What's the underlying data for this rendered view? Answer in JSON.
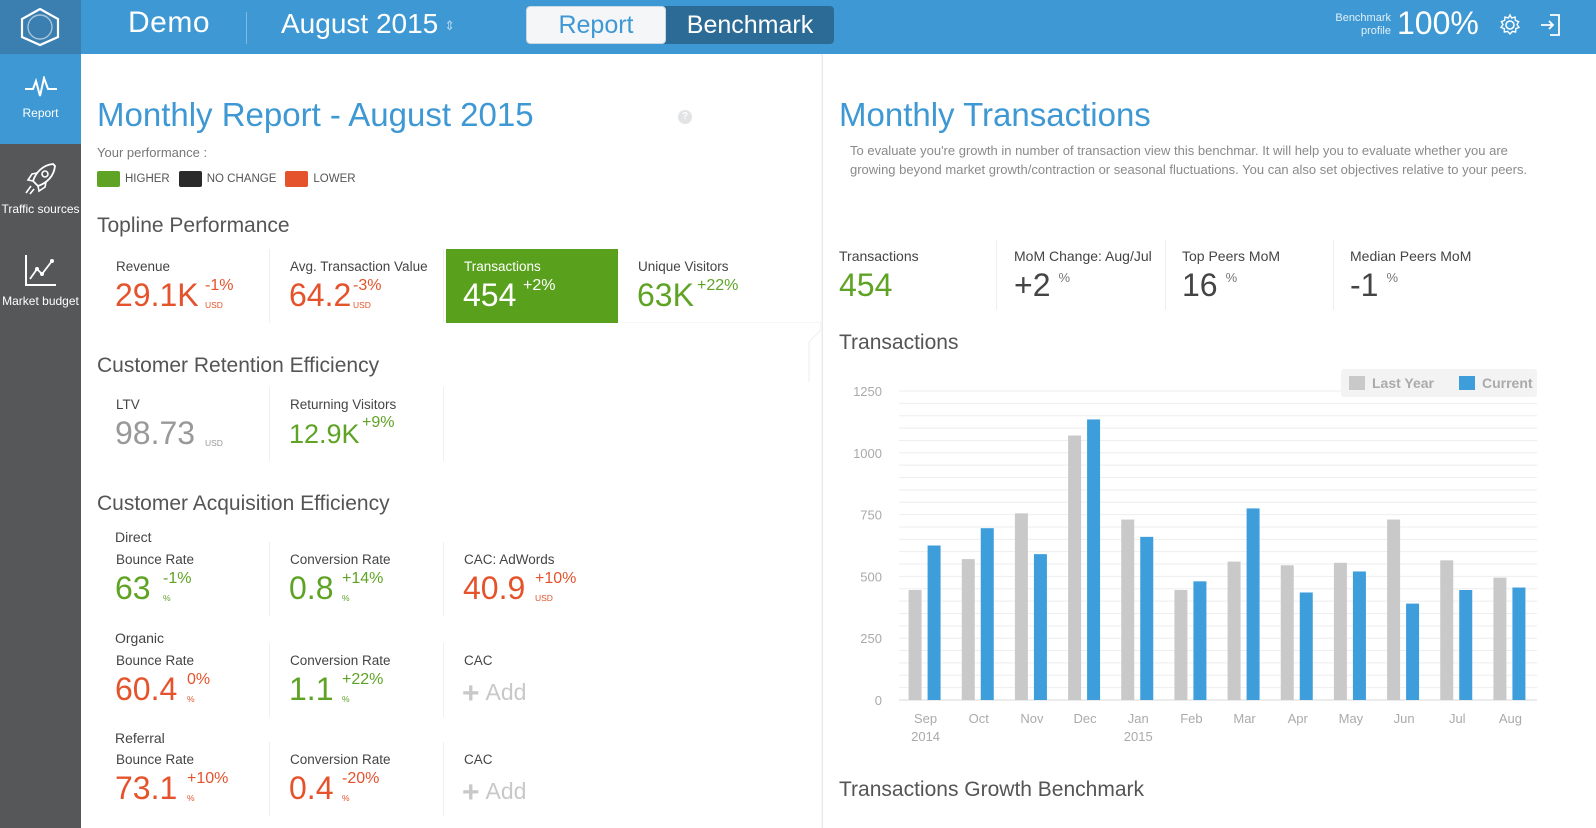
{
  "topbar": {
    "brand": "Demo",
    "period": "August 2015",
    "tabs": [
      "Report",
      "Benchmark"
    ],
    "benchmark_profile_label": "Benchmark profile",
    "benchmark_profile_value": "100%",
    "colors": {
      "accent": "#3d98d3",
      "dark": "#2b6b95"
    }
  },
  "sidebar": {
    "items": [
      {
        "label": "Report",
        "icon": "pulse-icon"
      },
      {
        "label": "Traffic sources",
        "icon": "rocket-icon"
      },
      {
        "label": "Market budget",
        "icon": "chart-icon"
      }
    ]
  },
  "report": {
    "title": "Monthly Report - August 2015",
    "help": "?",
    "performance_label": "Your performance :",
    "legend": [
      {
        "label": "HIGHER",
        "color": "#5fa325"
      },
      {
        "label": "NO CHANGE",
        "color": "#2a2a2a"
      },
      {
        "label": "LOWER",
        "color": "#e5532c"
      }
    ],
    "topline": {
      "title": "Topline Performance",
      "metrics": [
        {
          "label": "Revenue",
          "value": "29.1K",
          "delta": "-1%",
          "unit": "USD"
        },
        {
          "label": "Avg. Transaction Value",
          "value": "64.2",
          "delta": "-3%",
          "unit": "USD"
        },
        {
          "label": "Transactions",
          "value": "454",
          "delta": "+2%",
          "unit": ""
        },
        {
          "label": "Unique Visitors",
          "value": "63K",
          "delta": "+22%",
          "unit": ""
        }
      ]
    },
    "retention": {
      "title": "Customer Retention Efficiency",
      "metrics": [
        {
          "label": "LTV",
          "value": "98.73",
          "delta": "",
          "unit": "USD"
        },
        {
          "label": "Returning Visitors",
          "value": "12.9K",
          "delta": "+9%",
          "unit": ""
        }
      ]
    },
    "acquisition": {
      "title": "Customer Acquisition Efficiency",
      "groups": [
        {
          "name": "Direct",
          "metrics": [
            {
              "label": "Bounce Rate",
              "value": "63",
              "delta": "-1%",
              "unit": "%"
            },
            {
              "label": "Conversion Rate",
              "value": "0.8",
              "delta": "+14%",
              "unit": "%"
            },
            {
              "label": "CAC: AdWords",
              "value": "40.9",
              "delta": "+10%",
              "unit": "USD"
            }
          ]
        },
        {
          "name": "Organic",
          "metrics": [
            {
              "label": "Bounce Rate",
              "value": "60.4",
              "delta": "0%",
              "unit": "%"
            },
            {
              "label": "Conversion Rate",
              "value": "1.1",
              "delta": "+22%",
              "unit": "%"
            },
            {
              "label": "CAC",
              "add": "Add"
            }
          ]
        },
        {
          "name": "Referral",
          "metrics": [
            {
              "label": "Bounce Rate",
              "value": "73.1",
              "delta": "+10%",
              "unit": "%"
            },
            {
              "label": "Conversion Rate",
              "value": "0.4",
              "delta": "-20%",
              "unit": "%"
            },
            {
              "label": "CAC",
              "add": "Add"
            }
          ]
        }
      ]
    }
  },
  "benchmark": {
    "title": "Monthly Transactions",
    "description": "To evaluate you're growth in number of transaction view this benchmar. It will help you to evaluate whether you are growing beyond market growth/contraction or seasonal fluctuations. You can also set objectives relative to your peers.",
    "kpis": [
      {
        "label": "Transactions",
        "value": "454",
        "suffix": ""
      },
      {
        "label": "MoM Change: Aug/Jul",
        "value": "+2",
        "suffix": "%"
      },
      {
        "label": "Top Peers MoM",
        "value": "16",
        "suffix": "%"
      },
      {
        "label": "Median Peers MoM",
        "value": "-1",
        "suffix": "%"
      }
    ],
    "chart_title": "Transactions",
    "growth_title": "Transactions Growth Benchmark"
  },
  "chart_data": {
    "type": "bar",
    "title": "Transactions",
    "categories": [
      "Sep",
      "Oct",
      "Nov",
      "Dec",
      "Jan",
      "Feb",
      "Mar",
      "Apr",
      "May",
      "Jun",
      "Jul",
      "Aug"
    ],
    "category_years": [
      "2014",
      "",
      "",
      "",
      "2015",
      "",
      "",
      "",
      "",
      "",
      "",
      ""
    ],
    "series": [
      {
        "name": "Last Year",
        "color": "#c9c9c9",
        "values": [
          445,
          570,
          755,
          1070,
          730,
          445,
          560,
          545,
          555,
          730,
          565,
          495
        ]
      },
      {
        "name": "Current",
        "color": "#3d9edb",
        "values": [
          625,
          695,
          590,
          1135,
          660,
          480,
          775,
          435,
          520,
          390,
          445,
          455
        ]
      }
    ],
    "ylim": [
      0,
      1250
    ],
    "yticks": [
      0,
      250,
      500,
      750,
      1000,
      1250
    ],
    "ytick_labels": [
      "0",
      "250",
      "500",
      "750",
      "1000",
      "1250"
    ],
    "grid": true,
    "legend": "top-right"
  }
}
